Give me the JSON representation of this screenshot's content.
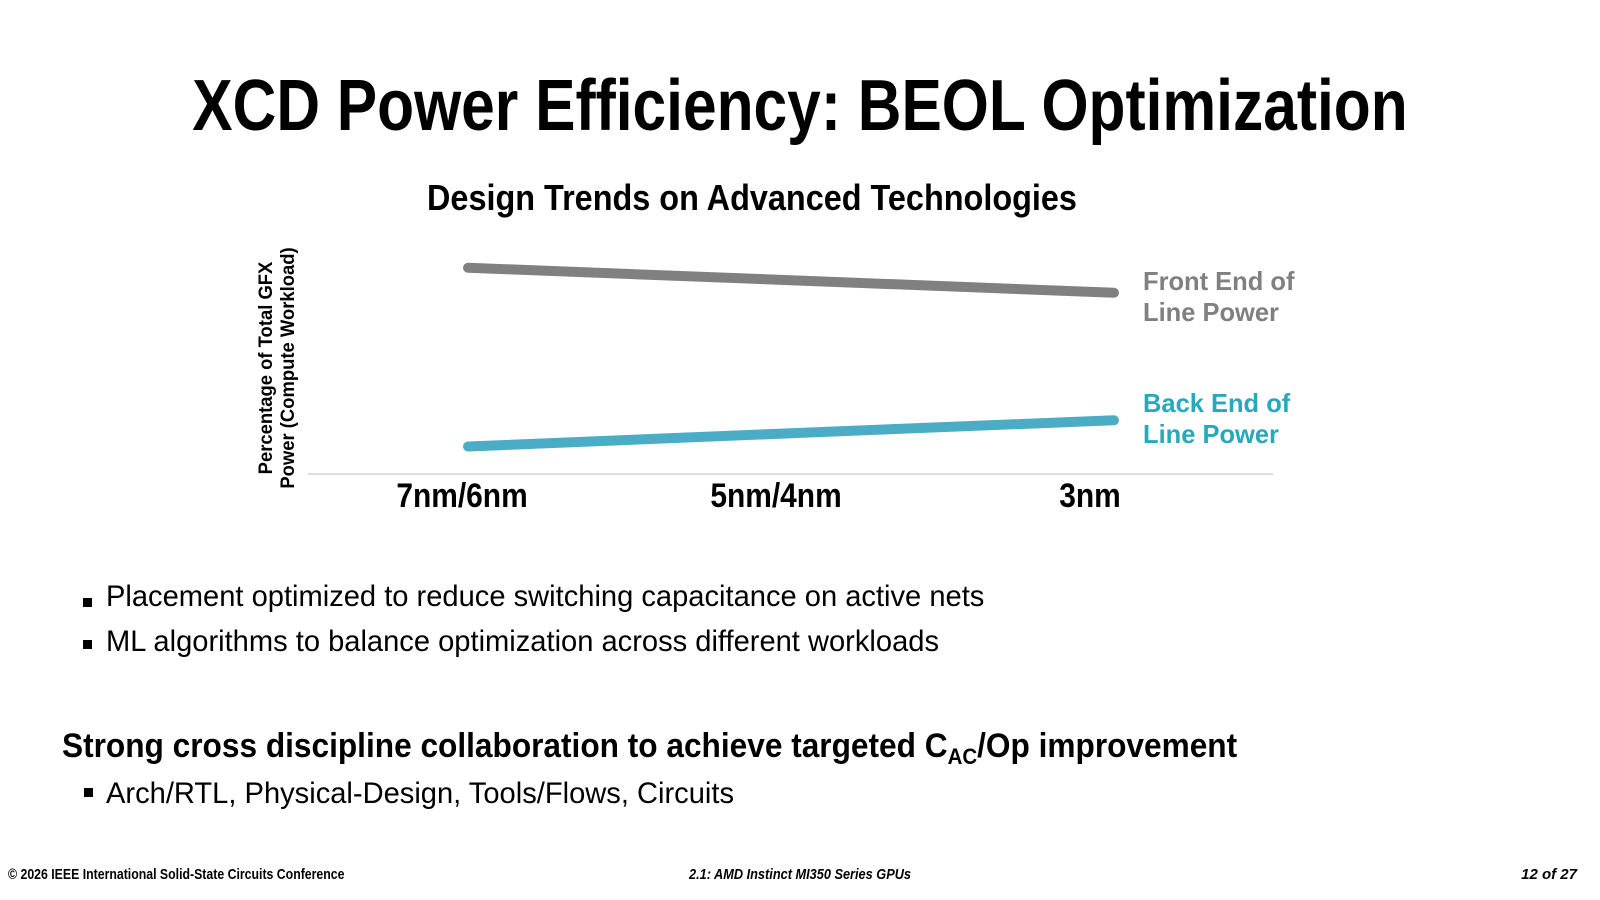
{
  "slide": {
    "title": "XCD Power Efficiency: BEOL Optimization",
    "bullets": [
      "Placement optimized to reduce switching capacitance on active nets",
      "ML algorithms to balance optimization across different workloads"
    ],
    "statement": {
      "prefix": "Strong cross discipline collaboration to achieve targeted C",
      "subscript": "AC",
      "suffix": "/Op improvement"
    },
    "sub_bullet": "Arch/RTL, Physical-Design, Tools/Flows, Circuits",
    "footer": {
      "left": "© 2026 IEEE International Solid-State Circuits Conference",
      "center": "2.1: AMD Instinct MI350 Series GPUs",
      "right": "12 of 27"
    }
  },
  "chart_data": {
    "type": "line",
    "title": "Design Trends on Advanced Technologies",
    "xlabel": "",
    "ylabel": "Percentage of Total GFX Power (Compute Workload)",
    "ylabel_display": "Percentage of Total GFX\nPower (Compute Workload)",
    "categories": [
      "7nm/6nm",
      "5nm/4nm",
      "3nm"
    ],
    "series": [
      {
        "name": "Front End of Line Power",
        "legend_label": "Front End of\nLine Power",
        "line_color": "#808080",
        "label_color": "#808080",
        "values": [
          82.5,
          77.5,
          72.5
        ]
      },
      {
        "name": "Back End of Line Power",
        "legend_label": "Back End of\nLine Power",
        "line_color": "#4BACC6",
        "label_color": "#28A8BC",
        "values": [
          11,
          16.3,
          21.5
        ]
      }
    ],
    "ylim": [
      0,
      100
    ],
    "values_are_estimates": true,
    "y_tick_labels_visible": false,
    "grid": false,
    "axis_line_color": "#DEDEDE",
    "legend_position": "right"
  }
}
